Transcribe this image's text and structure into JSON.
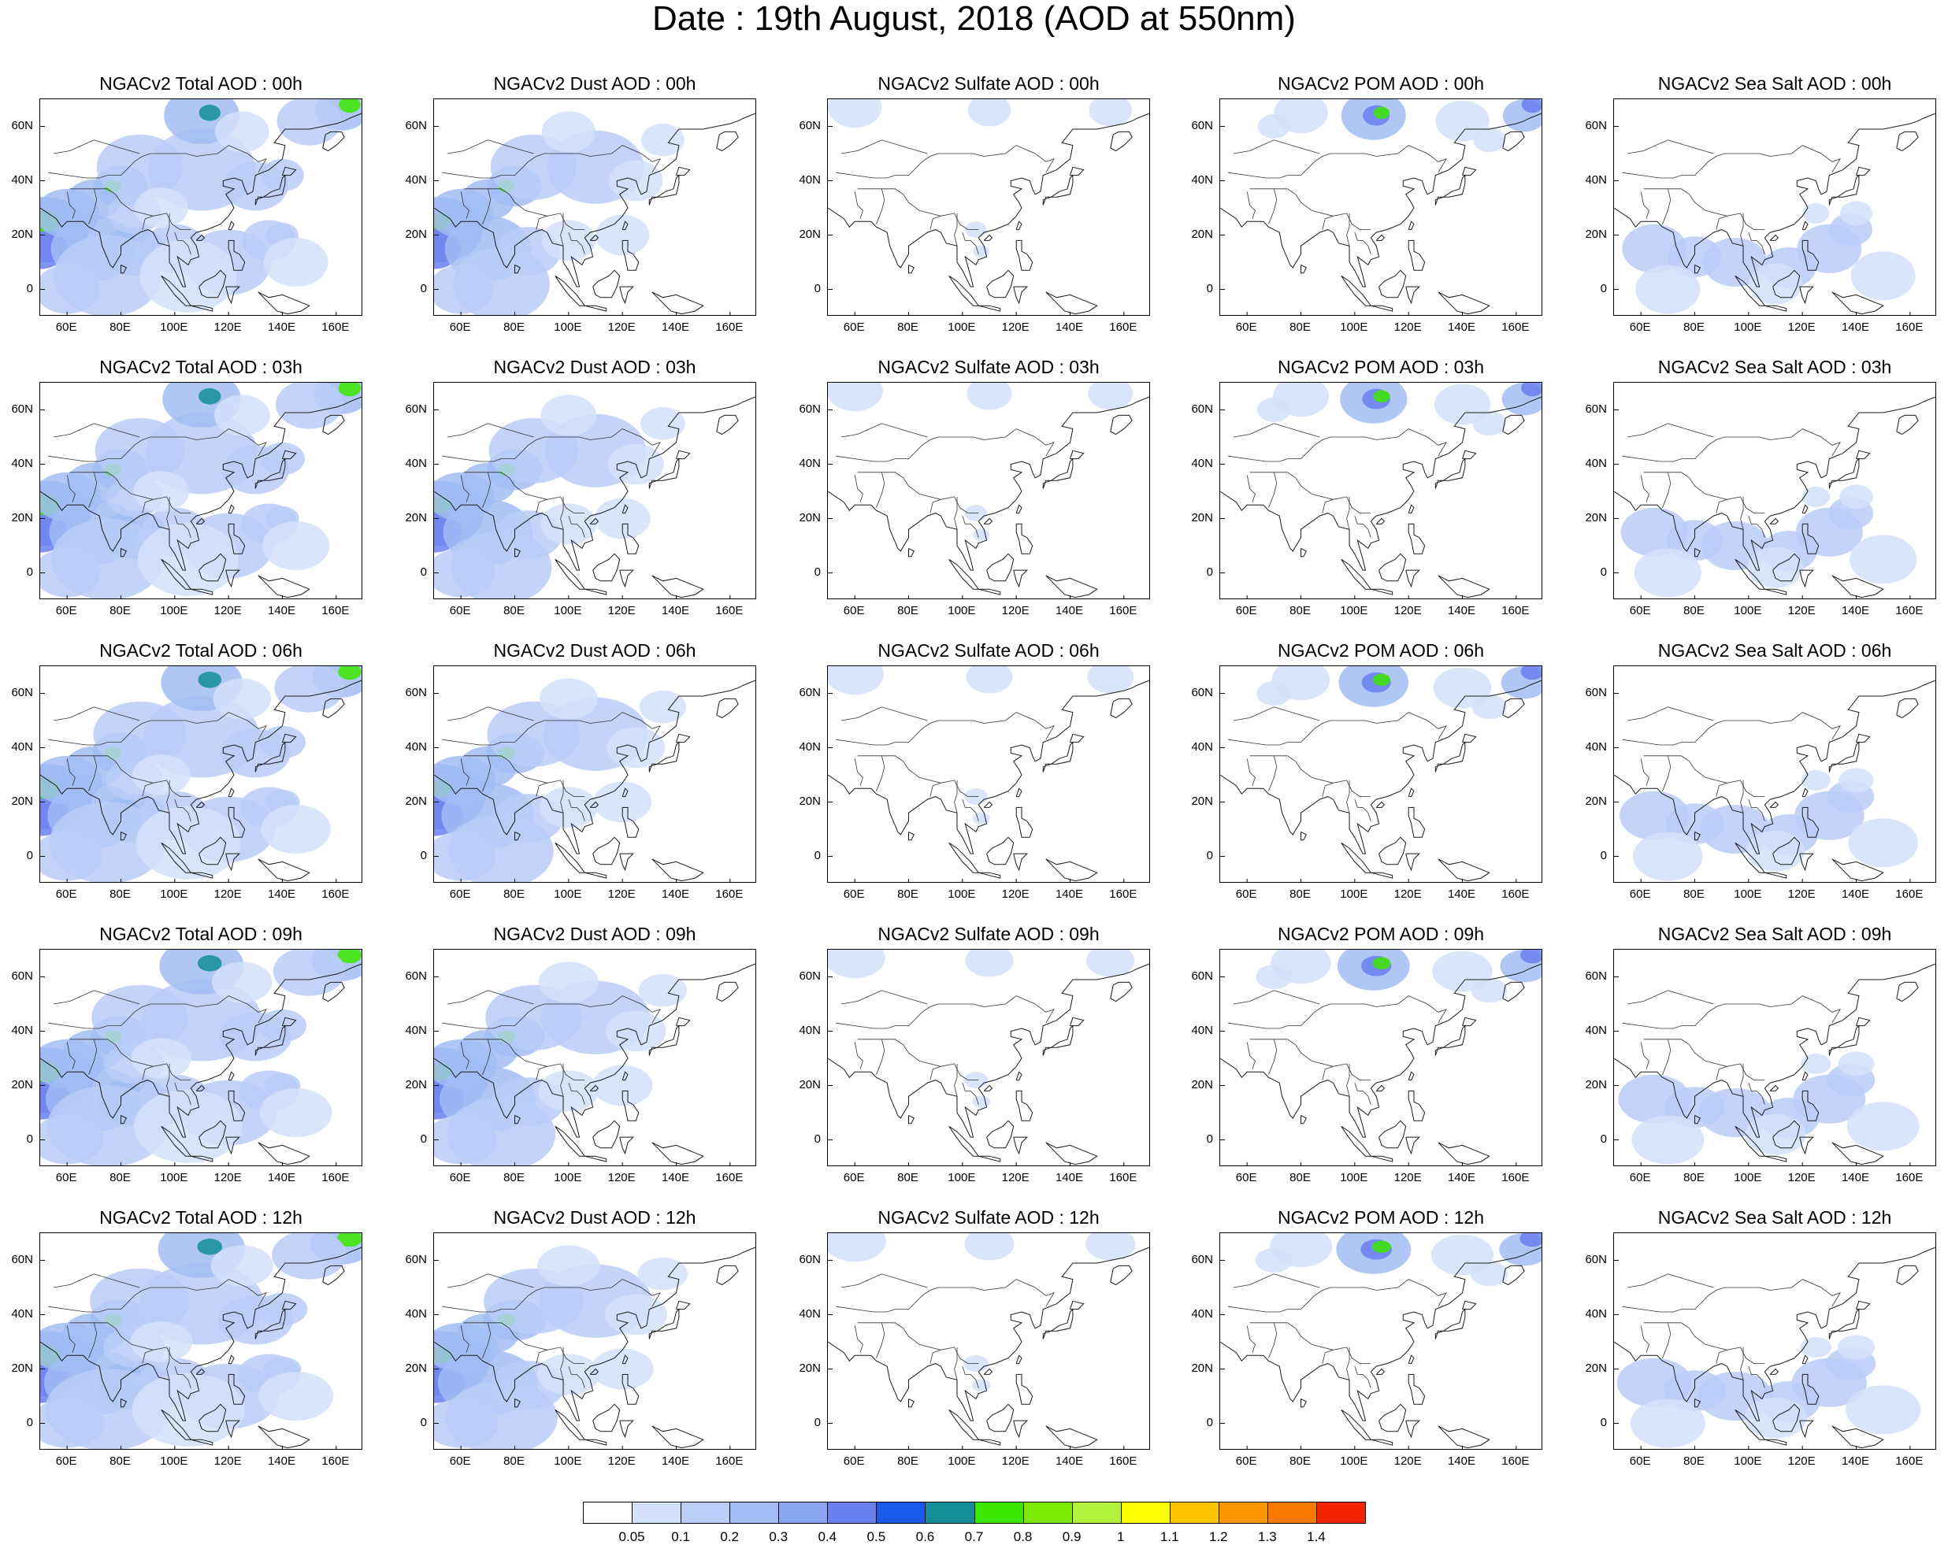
{
  "title": "Date : 19th August, 2018 (AOD at 550nm)",
  "columns": [
    {
      "key": "total",
      "titles": [
        "NGACv2 Total AOD : 00h",
        "NGACv2 Total AOD : 03h",
        "NGACv2 Total AOD : 06h",
        "NGACv2 Total AOD : 09h",
        "NGACv2 Total AOD  : 12h"
      ]
    },
    {
      "key": "dust",
      "titles": [
        "NGACv2 Dust AOD : 00h",
        "NGACv2 Dust AOD : 03h",
        "NGACv2 Dust AOD : 06h",
        "NGACv2 Dust AOD : 09h",
        "NGACv2 Dust AOD : 12h"
      ]
    },
    {
      "key": "sulfate",
      "titles": [
        "NGACv2 Sulfate AOD : 00h",
        "NGACv2 Sulfate AOD : 03h",
        "NGACv2 Sulfate AOD : 06h",
        "NGACv2 Sulfate AOD : 09h",
        "NGACv2 Sulfate AOD : 12h"
      ]
    },
    {
      "key": "pom",
      "titles": [
        "NGACv2 POM AOD : 00h",
        "NGACv2 POM AOD : 03h",
        "NGACv2 POM AOD : 06h",
        "NGACv2 POM AOD : 09h",
        "NGACv2 POM  AOD : 12h"
      ]
    },
    {
      "key": "seasalt",
      "titles": [
        "NGACv2 Sea Salt AOD : 00h",
        "NGACv2 Sea Salt AOD : 03h",
        "NGACv2 Sea Salt AOD : 06h",
        "NGACv2 Sea Salt  AOD : 09h",
        "NGACv2 Sea Salt  AOD : 12h"
      ]
    }
  ],
  "x_ticks": [
    "60E",
    "80E",
    "100E",
    "120E",
    "140E",
    "160E"
  ],
  "y_ticks": [
    "60N",
    "40N",
    "20N",
    "0"
  ],
  "map_extent": {
    "lon_min": 50,
    "lon_max": 170,
    "lat_min": -10,
    "lat_max": 70
  },
  "colorbar": {
    "labels": [
      "0.05",
      "0.1",
      "0.2",
      "0.3",
      "0.4",
      "0.5",
      "0.6",
      "0.7",
      "0.8",
      "0.9",
      "1",
      "1.1",
      "1.2",
      "1.3",
      "1.4"
    ],
    "colors": [
      "#ffffff",
      "#d4e1fa",
      "#b8cdf7",
      "#a2bdf5",
      "#8aa6f1",
      "#6a7ff0",
      "#1a5ae8",
      "#138e96",
      "#3ce800",
      "#7de804",
      "#b4f33c",
      "#ffff00",
      "#fcc400",
      "#f99600",
      "#f77900",
      "#f52400"
    ]
  }
}
